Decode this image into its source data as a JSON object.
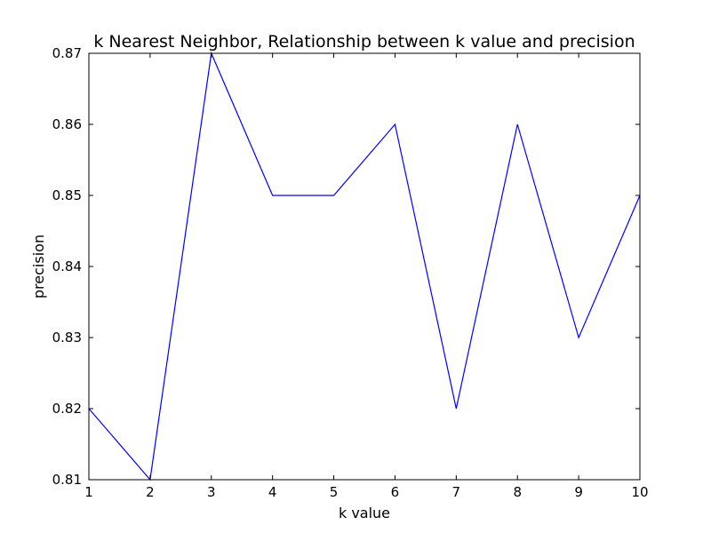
{
  "chart_data": {
    "type": "line",
    "title": "k Nearest Neighbor, Relationship between k value and precision",
    "xlabel": "k value",
    "ylabel": "precision",
    "xlim": [
      1,
      10
    ],
    "ylim": [
      0.81,
      0.87
    ],
    "xticks": [
      1,
      2,
      3,
      4,
      5,
      6,
      7,
      8,
      9,
      10
    ],
    "xtick_labels": [
      "1",
      "2",
      "3",
      "4",
      "5",
      "6",
      "7",
      "8",
      "9",
      "10"
    ],
    "yticks": [
      0.81,
      0.82,
      0.83,
      0.84,
      0.85,
      0.86,
      0.87
    ],
    "ytick_labels": [
      "0.81",
      "0.82",
      "0.83",
      "0.84",
      "0.85",
      "0.86",
      "0.87"
    ],
    "grid": false,
    "series": [
      {
        "color": "#0000ff",
        "x": [
          1,
          2,
          3,
          4,
          5,
          6,
          7,
          8,
          9,
          10
        ],
        "y": [
          0.82,
          0.81,
          0.87,
          0.85,
          0.85,
          0.86,
          0.82,
          0.86,
          0.83,
          0.85
        ]
      }
    ]
  }
}
